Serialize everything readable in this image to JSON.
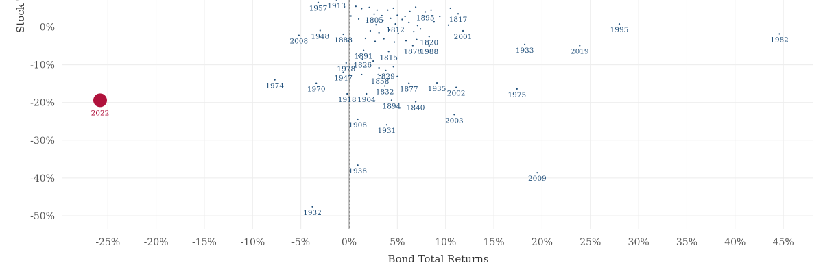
{
  "chart_data": {
    "type": "scatter",
    "title": "",
    "xlabel": "Bond Total Returns",
    "ylabel": "Stock T",
    "xlim": [
      -30,
      48
    ],
    "ylim": [
      -54,
      6
    ],
    "x_ticks": [
      "-25%",
      "-20%",
      "-15%",
      "-10%",
      "-5%",
      "0%",
      "5%",
      "10%",
      "15%",
      "20%",
      "25%",
      "30%",
      "35%",
      "40%",
      "45%"
    ],
    "y_ticks": [
      "0%",
      "-10%",
      "-20%",
      "-30%",
      "-40%",
      "-50%"
    ],
    "x_tick_values": [
      -25,
      -20,
      -15,
      -10,
      -5,
      0,
      5,
      10,
      15,
      20,
      25,
      30,
      35,
      40,
      45
    ],
    "y_tick_values": [
      0,
      -10,
      -20,
      -30,
      -40,
      -50
    ],
    "grid": true,
    "colors": {
      "points": "#1f4e79",
      "highlight": "#b0123c",
      "text": "#555555"
    },
    "points": [
      {
        "label": "1957",
        "x": -3.2,
        "y": 6.5
      },
      {
        "label": "1913",
        "x": -1.3,
        "y": 7.2
      },
      {
        "label": "1805",
        "x": 2.6,
        "y": 3.4
      },
      {
        "label": "1812",
        "x": 4.8,
        "y": 0.8
      },
      {
        "label": "1895",
        "x": 7.9,
        "y": 4.0
      },
      {
        "label": "1817",
        "x": 11.3,
        "y": 3.5
      },
      {
        "label": "1820",
        "x": 8.3,
        "y": -2.5
      },
      {
        "label": "2001",
        "x": 11.8,
        "y": -1.0
      },
      {
        "label": "1888",
        "x": -0.6,
        "y": -1.9
      },
      {
        "label": "1948",
        "x": -3.0,
        "y": -0.9
      },
      {
        "label": "2008",
        "x": -5.2,
        "y": -2.2
      },
      {
        "label": "1995",
        "x": 28.0,
        "y": 0.8
      },
      {
        "label": "1982",
        "x": 44.6,
        "y": -1.8
      },
      {
        "label": "1878",
        "x": 6.6,
        "y": -4.9
      },
      {
        "label": "1988",
        "x": 8.3,
        "y": -5.0
      },
      {
        "label": "1933",
        "x": 18.2,
        "y": -4.6
      },
      {
        "label": "2019",
        "x": 23.9,
        "y": -4.9
      },
      {
        "label": "1891",
        "x": 1.5,
        "y": -6.2
      },
      {
        "label": "1815",
        "x": 4.1,
        "y": -6.5
      },
      {
        "label": "1826",
        "x": 1.4,
        "y": -8.5
      },
      {
        "label": "1978",
        "x": -0.3,
        "y": -9.5
      },
      {
        "label": "1829",
        "x": 3.8,
        "y": -11.5
      },
      {
        "label": "1947",
        "x": -0.6,
        "y": -12.0
      },
      {
        "label": "1858",
        "x": 3.2,
        "y": -12.8
      },
      {
        "label": "1832",
        "x": 3.7,
        "y": -15.6
      },
      {
        "label": "1877",
        "x": 6.2,
        "y": -14.9
      },
      {
        "label": "1935",
        "x": 9.1,
        "y": -14.8
      },
      {
        "label": "2002",
        "x": 11.1,
        "y": -16.0
      },
      {
        "label": "1974",
        "x": -7.7,
        "y": -14.0
      },
      {
        "label": "1970",
        "x": -3.4,
        "y": -14.9
      },
      {
        "label": "1975",
        "x": 17.4,
        "y": -16.4
      },
      {
        "label": "1918",
        "x": -0.2,
        "y": -17.7
      },
      {
        "label": "1904",
        "x": 1.8,
        "y": -17.7
      },
      {
        "label": "1894",
        "x": 4.4,
        "y": -19.4
      },
      {
        "label": "1840",
        "x": 6.9,
        "y": -19.8
      },
      {
        "label": "2003",
        "x": 10.9,
        "y": -23.2
      },
      {
        "label": "1908",
        "x": 0.9,
        "y": -24.4
      },
      {
        "label": "1931",
        "x": 3.9,
        "y": -25.9
      },
      {
        "label": "1938",
        "x": 0.9,
        "y": -36.6
      },
      {
        "label": "2009",
        "x": 19.5,
        "y": -38.6
      },
      {
        "label": "1932",
        "x": -3.8,
        "y": -47.6
      },
      {
        "label": "2022",
        "x": -25.8,
        "y": -19.4,
        "highlight": true
      }
    ],
    "extra_points": [
      {
        "x": 0.7,
        "y": 5.5
      },
      {
        "x": 1.3,
        "y": 4.9
      },
      {
        "x": 2.1,
        "y": 5.2
      },
      {
        "x": 2.9,
        "y": 4.5
      },
      {
        "x": 3.4,
        "y": 3.0
      },
      {
        "x": 4.0,
        "y": 4.5
      },
      {
        "x": 4.6,
        "y": 5.0
      },
      {
        "x": 5.0,
        "y": 3.1
      },
      {
        "x": 5.8,
        "y": 2.8
      },
      {
        "x": 6.3,
        "y": 4.1
      },
      {
        "x": 6.9,
        "y": 5.3
      },
      {
        "x": 7.6,
        "y": 3.0
      },
      {
        "x": 8.5,
        "y": 4.5
      },
      {
        "x": 9.4,
        "y": 2.8
      },
      {
        "x": 10.5,
        "y": 5.0
      },
      {
        "x": 0.2,
        "y": 2.9
      },
      {
        "x": 1.0,
        "y": 2.1
      },
      {
        "x": 1.9,
        "y": 1.7
      },
      {
        "x": 2.8,
        "y": 0.6
      },
      {
        "x": 3.5,
        "y": 1.8
      },
      {
        "x": 4.3,
        "y": 2.3
      },
      {
        "x": 5.5,
        "y": 2.0
      },
      {
        "x": 6.2,
        "y": 1.2
      },
      {
        "x": 7.1,
        "y": 0.4
      },
      {
        "x": 8.8,
        "y": 1.5
      },
      {
        "x": 10.3,
        "y": 0.5
      },
      {
        "x": 2.2,
        "y": -1.0
      },
      {
        "x": 3.1,
        "y": -1.5
      },
      {
        "x": 4.2,
        "y": -0.8
      },
      {
        "x": 5.1,
        "y": -1.7
      },
      {
        "x": 6.7,
        "y": -1.2
      },
      {
        "x": 7.4,
        "y": -0.5
      },
      {
        "x": 1.7,
        "y": -3.0
      },
      {
        "x": 2.7,
        "y": -3.8
      },
      {
        "x": 3.6,
        "y": -3.1
      },
      {
        "x": 4.7,
        "y": -4.0
      },
      {
        "x": 5.9,
        "y": -3.6
      },
      {
        "x": 7.0,
        "y": -3.3
      },
      {
        "x": 1.0,
        "y": -7.6
      },
      {
        "x": 2.5,
        "y": -9.0
      },
      {
        "x": 3.1,
        "y": -10.8
      },
      {
        "x": 4.6,
        "y": -10.5
      },
      {
        "x": 5.0,
        "y": -13.1
      },
      {
        "x": 1.3,
        "y": -12.6
      }
    ]
  }
}
